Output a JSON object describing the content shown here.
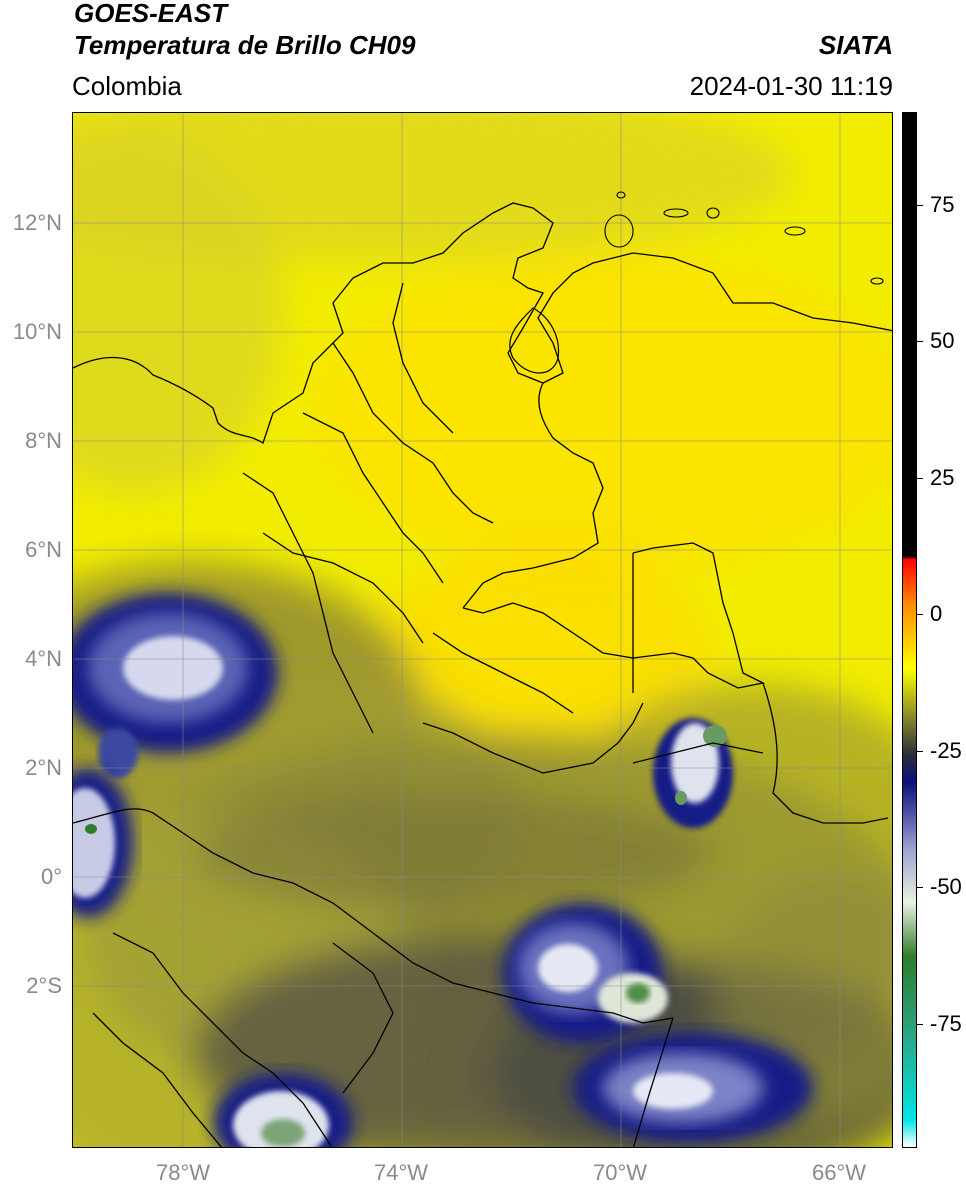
{
  "header": {
    "satellite": "GOES-EAST",
    "product": "Temperatura de Brillo CH09",
    "region": "Colombia",
    "agency": "SIATA",
    "datetime": "2024-01-30 11:19"
  },
  "map": {
    "lat_labels": [
      "12°N",
      "10°N",
      "8°N",
      "6°N",
      "4°N",
      "2°N",
      "0°",
      "2°S"
    ],
    "lon_labels": [
      "78°W",
      "74°W",
      "70°W",
      "66°W"
    ],
    "lat_range": [
      -5,
      14
    ],
    "lon_range": [
      -80,
      -65
    ]
  },
  "colorbar": {
    "labels": [
      "75",
      "50",
      "25",
      "0",
      "-25",
      "-50",
      "-75"
    ],
    "range": [
      -100,
      90
    ],
    "stops": [
      {
        "value": -100,
        "color": "#ffffff"
      },
      {
        "value": -95,
        "color": "#00e5e5"
      },
      {
        "value": -80,
        "color": "#2aa88a"
      },
      {
        "value": -65,
        "color": "#2f7d2a"
      },
      {
        "value": -55,
        "color": "#e9f1e2"
      },
      {
        "value": -45,
        "color": "#9aa0d0"
      },
      {
        "value": -33,
        "color": "#0b0f7a"
      },
      {
        "value": -28,
        "color": "#2b2d3a"
      },
      {
        "value": -22,
        "color": "#7c7a2e"
      },
      {
        "value": -12,
        "color": "#ffff00"
      },
      {
        "value": 0,
        "color": "#ff8800"
      },
      {
        "value": 8,
        "color": "#ff0000"
      },
      {
        "value": 8.5,
        "color": "#000000"
      },
      {
        "value": 90,
        "color": "#000000"
      }
    ]
  }
}
